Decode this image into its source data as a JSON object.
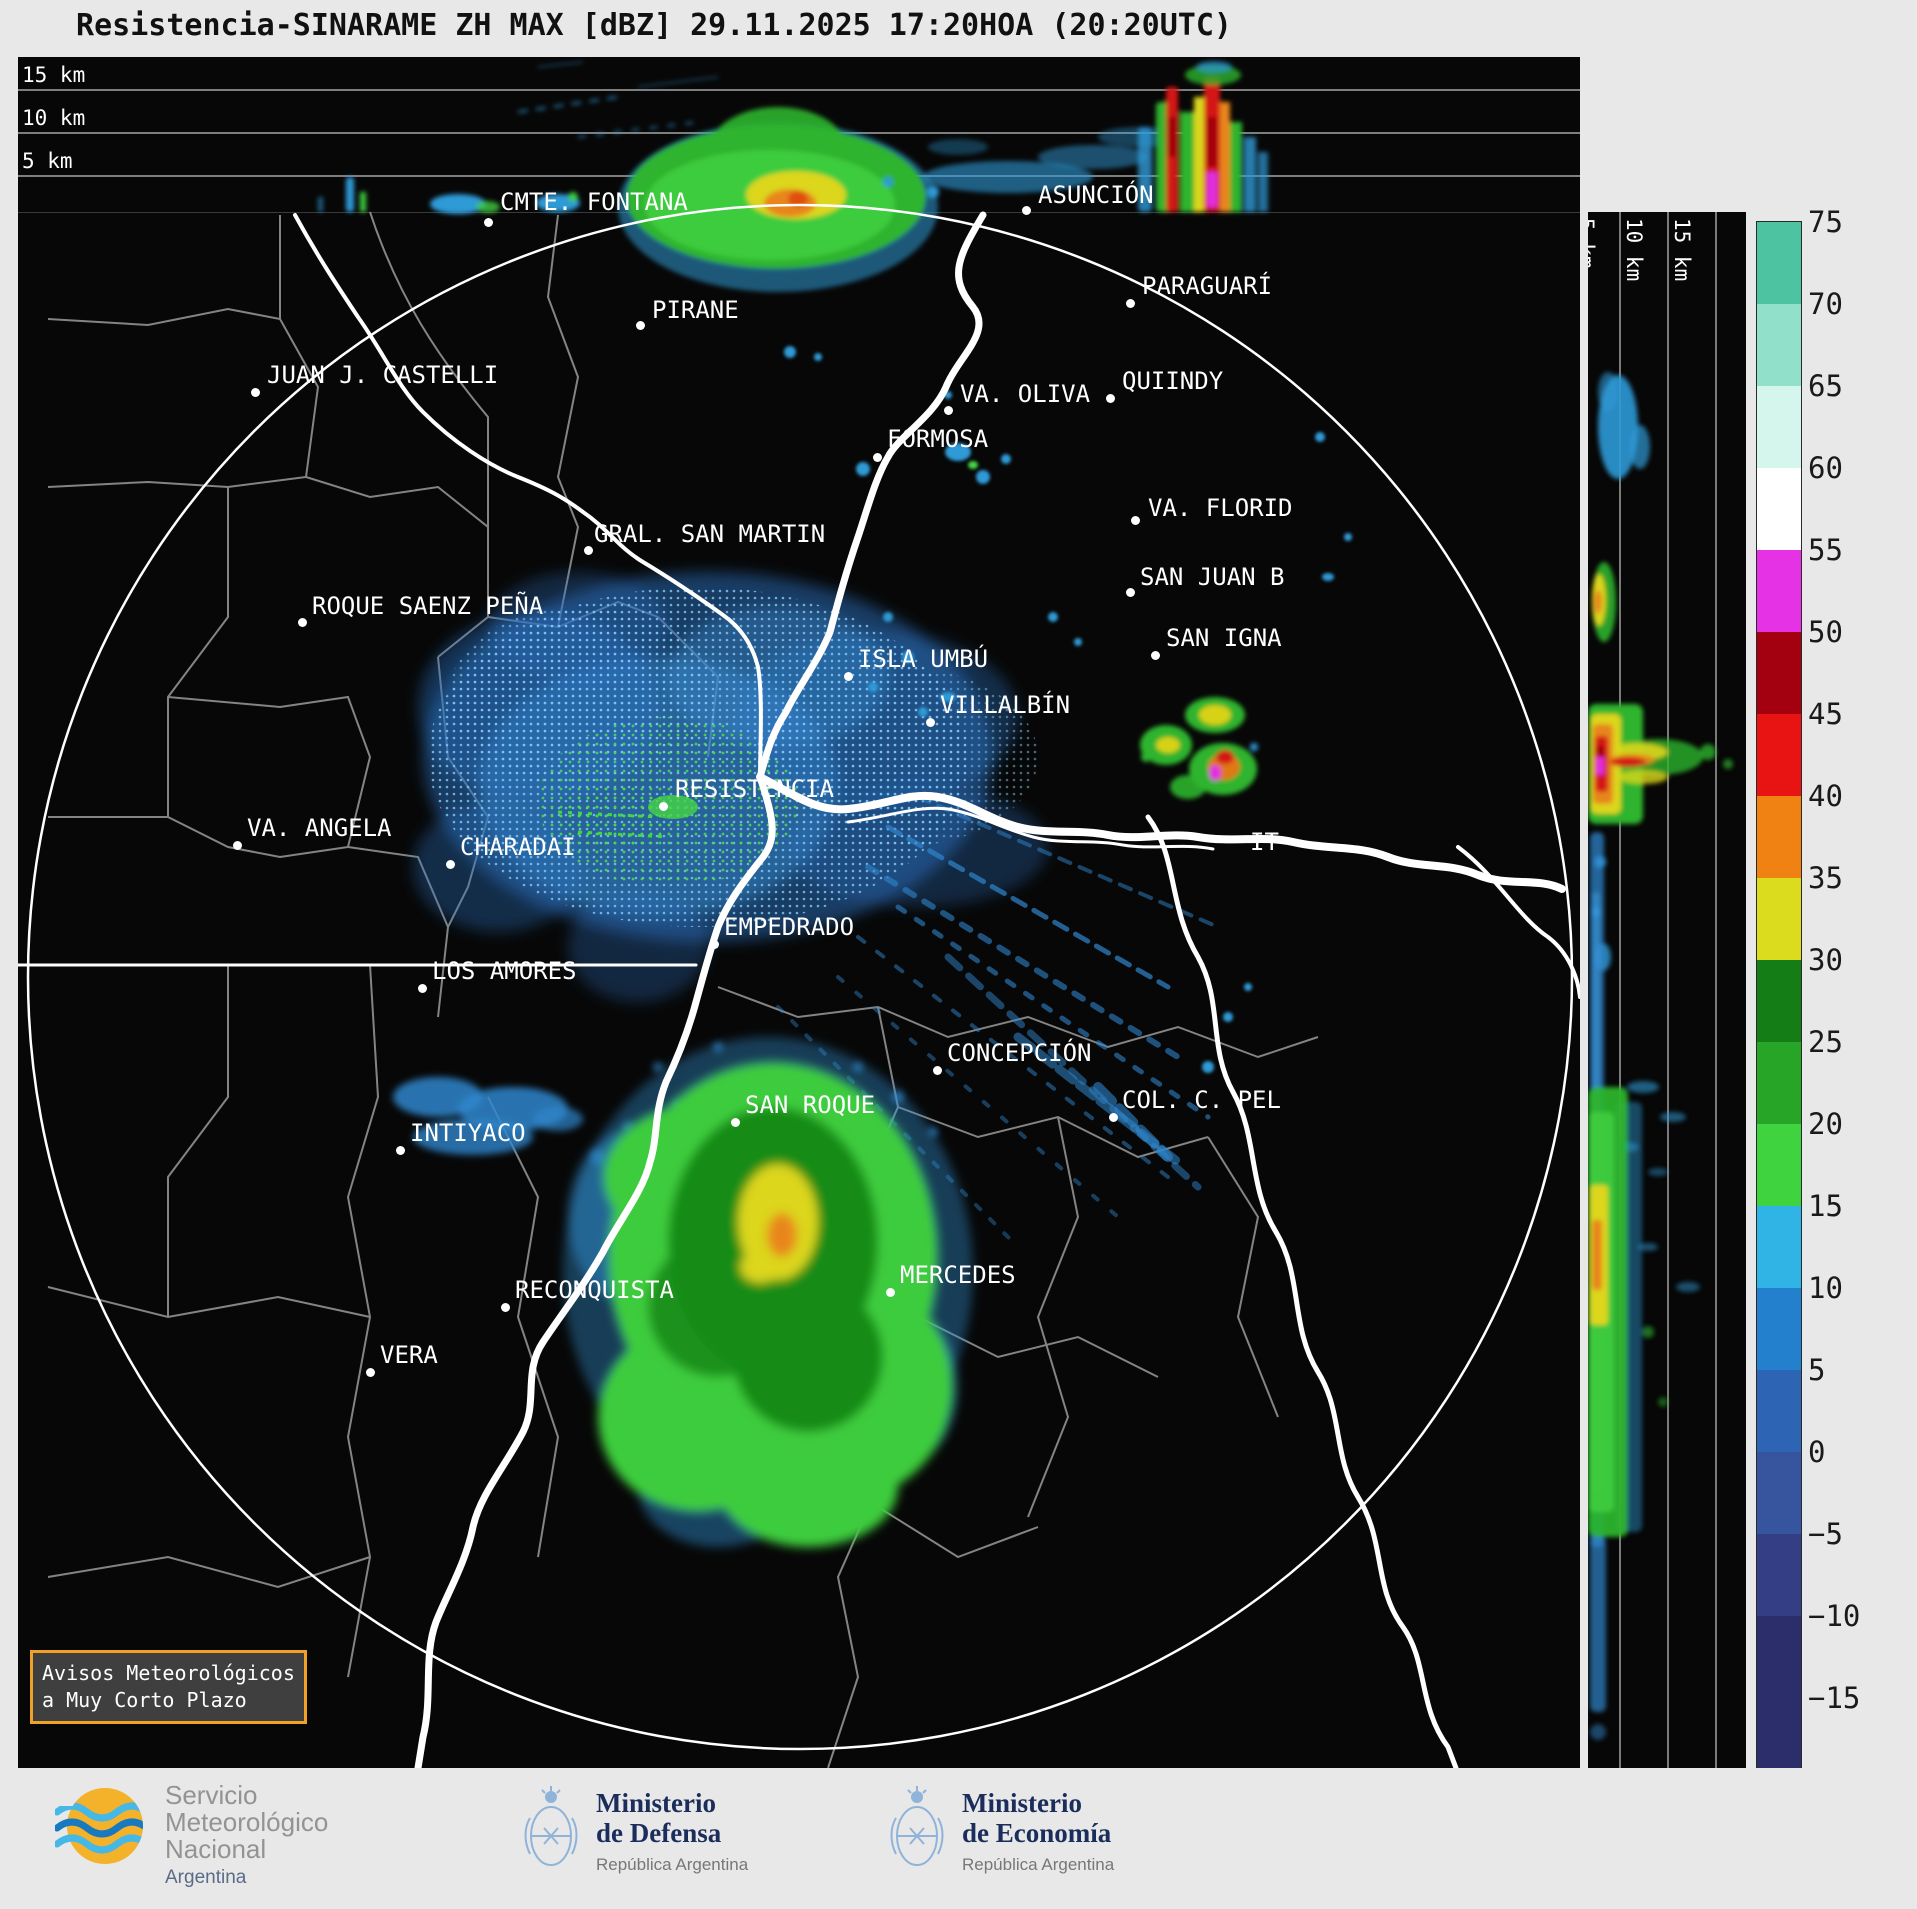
{
  "title": "Resistencia-SINARAME ZH MAX [dBZ] 29.11.2025 17:20HOA (20:20UTC)",
  "top_profile": {
    "labels": [
      "15 km",
      "10 km",
      "5 km"
    ]
  },
  "right_profile": {
    "labels": [
      "5 km",
      "10 km",
      "15 km"
    ]
  },
  "colorbar": {
    "unit": "dBZ",
    "tick_labels": [
      "75",
      "70",
      "65",
      "60",
      "55",
      "50",
      "45",
      "40",
      "35",
      "30",
      "25",
      "20",
      "15",
      "10",
      "5",
      "0",
      "−5",
      "−10",
      "−15"
    ],
    "band_colors_top_to_bottom": [
      "#4ec3a2",
      "#90e0ca",
      "#d4f6ec",
      "#ffffff",
      "#e432e4",
      "#a30010",
      "#e81414",
      "#f08214",
      "#dcdc1e",
      "#157d15",
      "#27a527",
      "#3fd43f",
      "#30b4e6",
      "#2380cc",
      "#2e64b4",
      "#37549e",
      "#333e85",
      "#2c2d6b"
    ]
  },
  "map": {
    "notice_box": {
      "line1": "Avisos Meteorológicos",
      "line2": "a Muy Corto Plazo"
    },
    "cities": [
      {
        "n": "CMTE. FONTANA",
        "d": [
          470,
          165
        ],
        "l": [
          482,
          131
        ]
      },
      {
        "n": "ASUNCIÓN",
        "d": [
          1008,
          153
        ],
        "l": [
          1020,
          124
        ]
      },
      {
        "n": "PIRANE",
        "d": [
          622,
          268
        ],
        "l": [
          634,
          239
        ]
      },
      {
        "n": "PARAGUARÍ",
        "d": [
          1112,
          246
        ],
        "l": [
          1124,
          215
        ]
      },
      {
        "n": "JUAN J. CASTELLI",
        "d": [
          237,
          335
        ],
        "l": [
          249,
          304
        ]
      },
      {
        "n": "VA. OLIVA",
        "d": [
          930,
          353
        ],
        "l": [
          942,
          323
        ]
      },
      {
        "n": "QUIINDY",
        "d": [
          1092,
          341
        ],
        "l": [
          1104,
          310
        ]
      },
      {
        "n": "FORMOSA",
        "d": [
          859,
          400
        ],
        "l": [
          869,
          368
        ]
      },
      {
        "n": "GRAL. SAN MARTIN",
        "d": [
          570,
          493
        ],
        "l": [
          576,
          463
        ]
      },
      {
        "n": "VA. FLORID",
        "d": [
          1117,
          463
        ],
        "l": [
          1130,
          437
        ]
      },
      {
        "n": "ROQUE SAENZ PEÑA",
        "d": [
          284,
          565
        ],
        "l": [
          294,
          535
        ]
      },
      {
        "n": "SAN JUAN B",
        "d": [
          1112,
          535
        ],
        "l": [
          1122,
          506
        ]
      },
      {
        "n": "SAN IGNA",
        "d": [
          1137,
          598
        ],
        "l": [
          1148,
          567
        ]
      },
      {
        "n": "ISLA UMBÚ",
        "d": [
          830,
          619
        ],
        "l": [
          840,
          588
        ]
      },
      {
        "n": "VILLALBÍN",
        "d": [
          912,
          665
        ],
        "l": [
          922,
          634
        ]
      },
      {
        "n": "RESISTENCIA",
        "d": [
          645,
          749
        ],
        "l": [
          657,
          718
        ]
      },
      {
        "n": "VA. ANGELA",
        "d": [
          219,
          788
        ],
        "l": [
          229,
          757
        ]
      },
      {
        "n": "CHARADAI",
        "d": [
          432,
          807
        ],
        "l": [
          442,
          776
        ]
      },
      {
        "n": "IT",
        "d": null,
        "l": [
          1232,
          771
        ]
      },
      {
        "n": "EMPEDRADO",
        "d": [
          696,
          887
        ],
        "l": [
          706,
          856
        ]
      },
      {
        "n": "LOS AMORES",
        "d": [
          404,
          931
        ],
        "l": [
          414,
          900
        ]
      },
      {
        "n": "CONCEPCIÓN",
        "d": [
          919,
          1013
        ],
        "l": [
          929,
          982
        ]
      },
      {
        "n": "SAN ROQUE",
        "d": [
          717,
          1065
        ],
        "l": [
          727,
          1034
        ]
      },
      {
        "n": "COL. C. PEL",
        "d": [
          1095,
          1060
        ],
        "l": [
          1104,
          1029
        ]
      },
      {
        "n": "INTIYACO",
        "d": [
          382,
          1093
        ],
        "l": [
          392,
          1062
        ]
      },
      {
        "n": "RECONQUISTA",
        "d": [
          487,
          1250
        ],
        "l": [
          497,
          1219
        ]
      },
      {
        "n": "MERCEDES",
        "d": [
          872,
          1235
        ],
        "l": [
          882,
          1204
        ]
      },
      {
        "n": "VERA",
        "d": [
          352,
          1315
        ],
        "l": [
          362,
          1284
        ]
      }
    ]
  },
  "footer": {
    "smn": {
      "name_lines": [
        "Servicio",
        "Meteorológico",
        "Nacional"
      ],
      "country": "Argentina"
    },
    "ministries": [
      {
        "line1": "Ministerio",
        "line2": "de Defensa",
        "sub": "República Argentina"
      },
      {
        "line1": "Ministerio",
        "line2": "de Economía",
        "sub": "República Argentina"
      }
    ]
  }
}
